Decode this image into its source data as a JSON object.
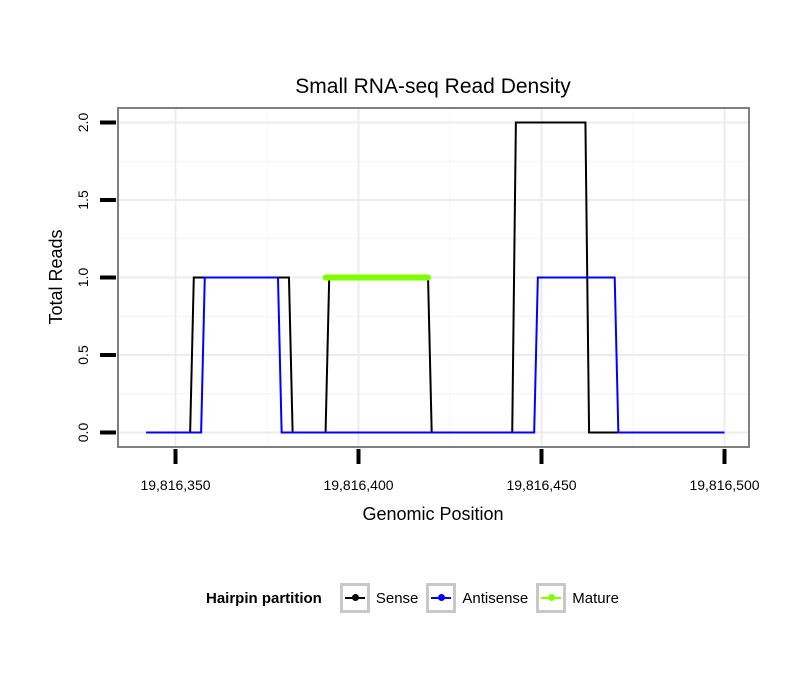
{
  "chart_data": {
    "type": "line",
    "title": "Small RNA-seq Read Density",
    "xlabel": "Genomic Position",
    "ylabel": "Total Reads",
    "xlim": [
      19816340,
      19816500
    ],
    "ylim": [
      0,
      2
    ],
    "x_ticks": [
      19816350,
      19816400,
      19816450,
      19816500
    ],
    "x_tick_labels": [
      "19,816,350",
      "19,816,400",
      "19,816,450",
      "19,816,500"
    ],
    "y_ticks": [
      0,
      0.5,
      1,
      1.5,
      2
    ],
    "y_tick_labels": [
      "0.0",
      "0.5",
      "1.0",
      "1.5",
      "2.0"
    ],
    "grid": true,
    "legend_position": "bottom",
    "series": [
      {
        "name": "Sense",
        "color": "#000000",
        "x": [
          19816342,
          19816354,
          19816355,
          19816381,
          19816382,
          19816391,
          19816392,
          19816419,
          19816420,
          19816442,
          19816443,
          19816462,
          19816463,
          19816500
        ],
        "y": [
          0,
          0,
          1,
          1,
          0,
          0,
          1,
          1,
          0,
          0,
          2,
          2,
          0,
          0
        ]
      },
      {
        "name": "Antisense",
        "color": "#0000ff",
        "x": [
          19816342,
          19816357,
          19816358,
          19816378,
          19816379,
          19816448,
          19816449,
          19816470,
          19816471,
          19816500
        ],
        "y": [
          0,
          0,
          1,
          1,
          0,
          0,
          1,
          1,
          0,
          0
        ]
      },
      {
        "name": "Mature",
        "color": "#7fff00",
        "x": [
          19816391,
          19816419
        ],
        "y": [
          1,
          1
        ]
      }
    ]
  },
  "legend": {
    "title": "Hairpin partition",
    "items": [
      {
        "label": "Sense",
        "color": "#000000"
      },
      {
        "label": "Antisense",
        "color": "#0000ff"
      },
      {
        "label": "Mature",
        "color": "#7fff00"
      }
    ]
  }
}
